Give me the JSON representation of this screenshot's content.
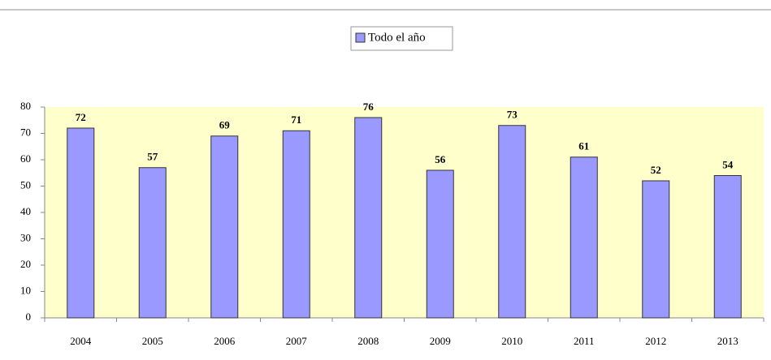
{
  "chart_data": {
    "type": "bar",
    "legend": "Todo el año",
    "categories": [
      "2004",
      "2005",
      "2006",
      "2007",
      "2008",
      "2009",
      "2010",
      "2011",
      "2012",
      "2013"
    ],
    "values": [
      72,
      57,
      69,
      71,
      76,
      56,
      73,
      61,
      52,
      54
    ],
    "color": "#9999ff",
    "ylim": [
      0,
      80
    ],
    "yticks": [
      0,
      10,
      20,
      30,
      40,
      50,
      60,
      70,
      80
    ],
    "grid": false
  }
}
